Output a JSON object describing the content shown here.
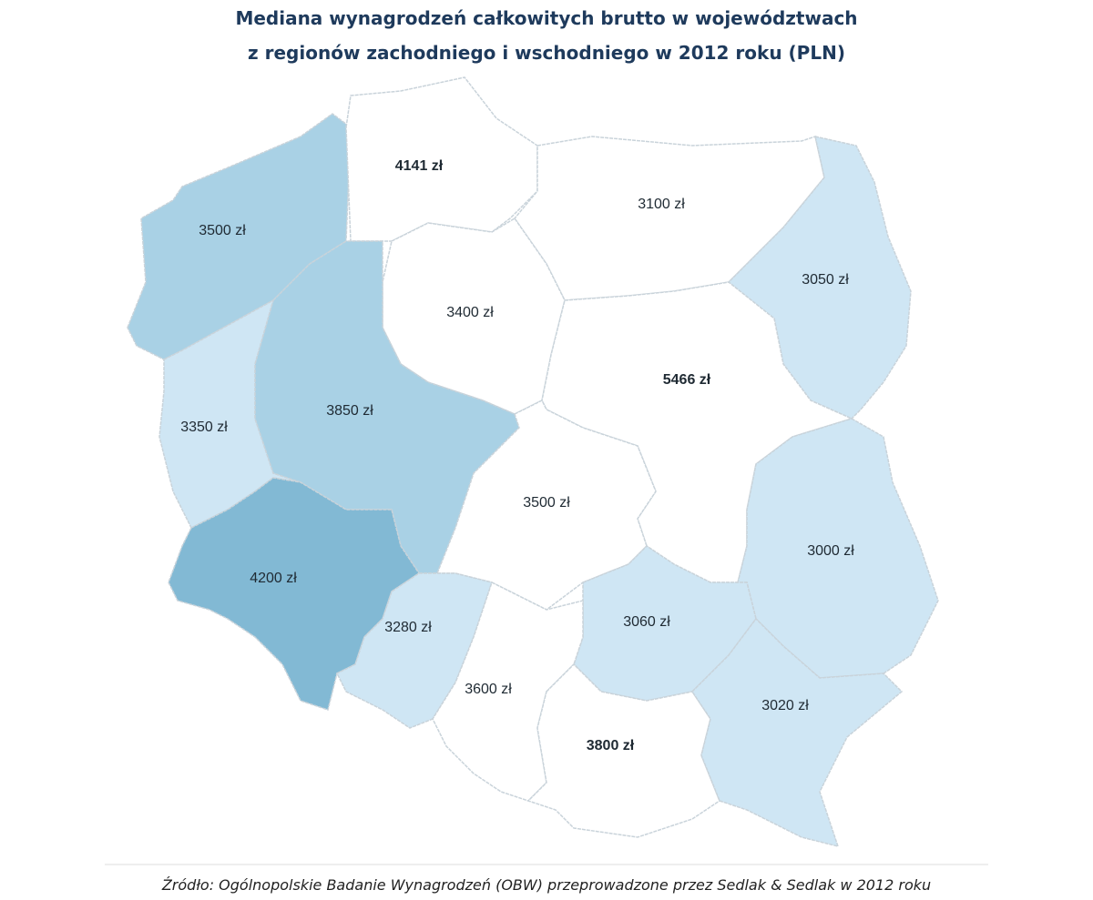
{
  "header": {
    "title": [
      "Mediana wynagrodzeń całkowitych brutto w województwach",
      "z regionów zachodniego i wschodniego w 2012 roku (PLN)"
    ]
  },
  "regions": [
    {
      "label": "3500 zł",
      "color": "#a9d1e5"
    },
    {
      "label": "4141 zł",
      "color": "#ffffff"
    },
    {
      "label": "3100 zł",
      "color": "#ffffff"
    },
    {
      "label": "3050 zł",
      "color": "#cfe6f4"
    },
    {
      "label": "3400 zł",
      "color": "#ffffff"
    },
    {
      "label": "5466 zł",
      "color": "#ffffff"
    },
    {
      "label": "3350 zł",
      "color": "#cfe6f4"
    },
    {
      "label": "3850 zł",
      "color": "#a9d1e5"
    },
    {
      "label": "3500 zł",
      "color": "#ffffff"
    },
    {
      "label": "3000 zł",
      "color": "#cfe6f4"
    },
    {
      "label": "4200 zł",
      "color": "#82b9d4"
    },
    {
      "label": "3280 zł",
      "color": "#cfe6f4"
    },
    {
      "label": "3060 zł",
      "color": "#cfe6f4"
    },
    {
      "label": "3600 zł",
      "color": "#ffffff"
    },
    {
      "label": "3800 zł",
      "color": "#ffffff"
    },
    {
      "label": "3020 zł",
      "color": "#cfe6f4"
    }
  ],
  "footer": {
    "source": "Źródło: Ogólnopolskie Badanie Wynagrodzeń (OBW) przeprowadzone przez Sedlak & Sedlak w 2012 roku"
  }
}
